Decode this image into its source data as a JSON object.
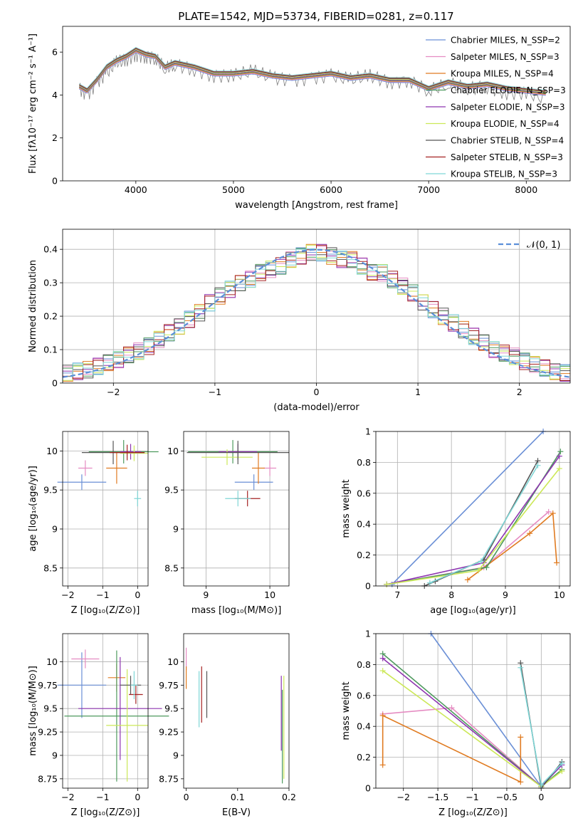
{
  "figure": {
    "title": "PLATE=1542, MJD=53734, FIBERID=0281, z=0.117"
  },
  "chart_data": [
    {
      "id": "spectrum",
      "type": "line",
      "xlabel": "wavelength [Angstrom, rest frame]",
      "ylabel": "Flux [fλ10⁻¹⁷ erg cm⁻² s⁻¹ A⁻¹]",
      "xlim": [
        3250,
        8450
      ],
      "ylim": [
        0,
        7.2
      ],
      "xticks": [
        4000,
        5000,
        6000,
        7000,
        8000
      ],
      "yticks": [
        0,
        2,
        4,
        6
      ],
      "grid": false,
      "legend_position": "top-right",
      "data_series": {
        "name": "",
        "color": "#808080",
        "x": [
          3420,
          3500,
          3600,
          3700,
          3800,
          3900,
          4000,
          4100,
          4200,
          4300,
          4400,
          4600,
          4800,
          5000,
          5200,
          5400,
          5600,
          5800,
          6000,
          6200,
          6400,
          6600,
          6800,
          7000,
          7200,
          7400,
          7600,
          7800,
          8000,
          8200
        ],
        "y": [
          4.3,
          4.0,
          4.6,
          5.0,
          5.5,
          5.6,
          5.9,
          5.8,
          5.7,
          5.2,
          5.4,
          5.2,
          4.9,
          4.9,
          5.1,
          4.8,
          4.7,
          4.8,
          4.9,
          4.7,
          4.9,
          4.6,
          4.7,
          4.2,
          4.5,
          4.3,
          4.4,
          4.1,
          4.1,
          3.8
        ]
      },
      "series": [
        {
          "name": "Chabrier MILES, N_SSP=2",
          "color": "#6a8fd6"
        },
        {
          "name": "Salpeter MILES, N_SSP=3",
          "color": "#e58cc2"
        },
        {
          "name": "Kroupa MILES, N_SSP=4",
          "color": "#e07b21"
        },
        {
          "name": "Chabrier ELODIE, N_SSP=3",
          "color": "#4e9a5e"
        },
        {
          "name": "Salpeter ELODIE, N_SSP=3",
          "color": "#8e35b0"
        },
        {
          "name": "Kroupa ELODIE, N_SSP=4",
          "color": "#cce858"
        },
        {
          "name": "Chabrier STELIB, N_SSP=4",
          "color": "#555555"
        },
        {
          "name": "Salpeter STELIB, N_SSP=3",
          "color": "#a52222"
        },
        {
          "name": "Kroupa STELIB, N_SSP=3",
          "color": "#7fd6d6"
        }
      ],
      "model_x": [
        3420,
        3500,
        3600,
        3700,
        3800,
        3900,
        4000,
        4100,
        4200,
        4300,
        4400,
        4600,
        4800,
        5000,
        5200,
        5400,
        5600,
        5800,
        6000,
        6200,
        6400,
        6600,
        6800,
        7000,
        7200,
        7400,
        7600,
        7800,
        8000,
        8200
      ],
      "model_y": [
        4.4,
        4.2,
        4.7,
        5.3,
        5.6,
        5.8,
        6.1,
        5.9,
        5.8,
        5.3,
        5.5,
        5.3,
        5.0,
        5.0,
        5.1,
        4.9,
        4.8,
        4.9,
        5.0,
        4.8,
        4.9,
        4.7,
        4.7,
        4.3,
        4.6,
        4.4,
        4.5,
        4.3,
        4.2,
        4.1
      ]
    },
    {
      "id": "residuals",
      "type": "histogram",
      "xlabel": "(data-model)/error",
      "ylabel": "Normed distribution",
      "xlim": [
        -2.5,
        2.5
      ],
      "ylim": [
        0,
        0.46
      ],
      "xticks": [
        -2,
        -1,
        0,
        1,
        2
      ],
      "yticks": [
        0.0,
        0.1,
        0.2,
        0.3,
        0.4
      ],
      "grid": true,
      "legend_position": "top-right",
      "reference_curve": {
        "name": "𝒩(0, 1)",
        "color": "#5b8fd9"
      },
      "bin_centers": [
        -2.45,
        -2.35,
        -2.25,
        -2.15,
        -2.05,
        -1.95,
        -1.85,
        -1.75,
        -1.65,
        -1.55,
        -1.45,
        -1.35,
        -1.25,
        -1.15,
        -1.05,
        -0.95,
        -0.85,
        -0.75,
        -0.65,
        -0.55,
        -0.45,
        -0.35,
        -0.25,
        -0.15,
        -0.05,
        0.05,
        0.15,
        0.25,
        0.35,
        0.45,
        0.55,
        0.65,
        0.75,
        0.85,
        0.95,
        1.05,
        1.15,
        1.25,
        1.35,
        1.45,
        1.55,
        1.65,
        1.75,
        1.85,
        1.95,
        2.05,
        2.15,
        2.25,
        2.35,
        2.45
      ],
      "hist_values": [
        0.03,
        0.035,
        0.04,
        0.05,
        0.06,
        0.07,
        0.085,
        0.095,
        0.11,
        0.13,
        0.15,
        0.17,
        0.19,
        0.21,
        0.24,
        0.26,
        0.28,
        0.3,
        0.31,
        0.33,
        0.34,
        0.35,
        0.37,
        0.38,
        0.39,
        0.39,
        0.38,
        0.37,
        0.37,
        0.35,
        0.33,
        0.33,
        0.31,
        0.29,
        0.27,
        0.24,
        0.22,
        0.2,
        0.18,
        0.16,
        0.14,
        0.12,
        0.1,
        0.09,
        0.08,
        0.065,
        0.055,
        0.045,
        0.035,
        0.03
      ]
    },
    {
      "id": "age_vs_Z",
      "type": "scatter",
      "xlabel": "Z [log₁₀(Z/Z⊙)]",
      "ylabel": "age  [log₁₀(age/yr)]",
      "xlim": [
        -2.15,
        0.3
      ],
      "ylim": [
        8.27,
        10.25
      ],
      "xticks": [
        -2,
        -1,
        0
      ],
      "yticks": [
        8.5,
        9.0,
        9.5,
        10.0
      ],
      "grid": true,
      "points": [
        {
          "color": "#6a8fd6",
          "x": -1.6,
          "y": 9.6,
          "xerr": 0.7,
          "yerr": 0.1
        },
        {
          "color": "#e58cc2",
          "x": -1.5,
          "y": 9.78,
          "xerr": 0.2,
          "yerr": 0.1
        },
        {
          "color": "#e07b21",
          "x": -0.6,
          "y": 9.78,
          "xerr": 0.3,
          "yerr": 0.2
        },
        {
          "color": "#4e9a5e",
          "x": -0.4,
          "y": 9.99,
          "xerr": 1.0,
          "yerr": 0.15
        },
        {
          "color": "#8e35b0",
          "x": -0.2,
          "y": 9.99,
          "xerr": 0.3,
          "yerr": 0.1
        },
        {
          "color": "#cce858",
          "x": -0.1,
          "y": 9.97,
          "xerr": 0.4,
          "yerr": 0.1
        },
        {
          "color": "#555555",
          "x": -0.7,
          "y": 9.98,
          "xerr": 0.9,
          "yerr": 0.15
        },
        {
          "color": "#a52222",
          "x": -0.3,
          "y": 9.98,
          "xerr": 0.5,
          "yerr": 0.1
        },
        {
          "color": "#7fd6d6",
          "x": 0.0,
          "y": 9.39,
          "xerr": 0.1,
          "yerr": 0.1
        }
      ]
    },
    {
      "id": "age_vs_mass",
      "type": "scatter",
      "xlabel": "mass [log₁₀(M/M⊙)]",
      "ylabel": "",
      "xlim": [
        8.65,
        10.3
      ],
      "ylim": [
        8.27,
        10.25
      ],
      "xticks": [
        9,
        10
      ],
      "yticks": [
        8.5,
        9.0,
        9.5,
        10.0
      ],
      "grid": true,
      "points": [
        {
          "color": "#6a8fd6",
          "x": 9.75,
          "y": 9.6,
          "xerr": 0.3,
          "yerr": 0.1
        },
        {
          "color": "#e58cc2",
          "x": 10.0,
          "y": 9.78,
          "xerr": 0.1,
          "yerr": 0.1
        },
        {
          "color": "#e07b21",
          "x": 9.82,
          "y": 9.78,
          "xerr": 0.1,
          "yerr": 0.2
        },
        {
          "color": "#4e9a5e",
          "x": 9.42,
          "y": 9.99,
          "xerr": 0.7,
          "yerr": 0.15
        },
        {
          "color": "#8e35b0",
          "x": 9.5,
          "y": 9.99,
          "xerr": 0.3,
          "yerr": 0.1
        },
        {
          "color": "#cce858",
          "x": 9.33,
          "y": 9.92,
          "xerr": 0.4,
          "yerr": 0.1
        },
        {
          "color": "#555555",
          "x": 9.5,
          "y": 9.98,
          "xerr": 0.8,
          "yerr": 0.15
        },
        {
          "color": "#a52222",
          "x": 9.65,
          "y": 9.39,
          "xerr": 0.2,
          "yerr": 0.1
        },
        {
          "color": "#7fd6d6",
          "x": 9.5,
          "y": 9.39,
          "xerr": 0.2,
          "yerr": 0.1
        }
      ]
    },
    {
      "id": "weight_vs_age",
      "type": "line",
      "xlabel": "age  [log₁₀(age/yr)]",
      "ylabel": "mass weight",
      "xlim": [
        6.6,
        10.2
      ],
      "ylim": [
        0,
        1.0
      ],
      "xticks": [
        7,
        8,
        9,
        10
      ],
      "yticks": [
        0.0,
        0.2,
        0.4,
        0.6,
        0.8,
        1.0
      ],
      "grid": true,
      "series": [
        {
          "color": "#6a8fd6",
          "x": [
            6.9,
            9.7
          ],
          "y": [
            0.01,
            1.0
          ]
        },
        {
          "color": "#e58cc2",
          "x": [
            6.8,
            8.6,
            9.8
          ],
          "y": [
            0.01,
            0.12,
            0.48
          ]
        },
        {
          "color": "#e07b21",
          "x": [
            8.3,
            9.45,
            9.88,
            9.95
          ],
          "y": [
            0.04,
            0.34,
            0.47,
            0.15
          ]
        },
        {
          "color": "#4e9a5e",
          "x": [
            6.8,
            8.65,
            10.02
          ],
          "y": [
            0.01,
            0.12,
            0.87
          ]
        },
        {
          "color": "#8e35b0",
          "x": [
            6.8,
            8.6,
            10.0
          ],
          "y": [
            0.01,
            0.15,
            0.84
          ]
        },
        {
          "color": "#cce858",
          "x": [
            6.8,
            8.5,
            10.0
          ],
          "y": [
            0.01,
            0.1,
            0.76
          ]
        },
        {
          "color": "#555555",
          "x": [
            7.5,
            7.7,
            8.6,
            9.6
          ],
          "y": [
            0.0,
            0.03,
            0.17,
            0.81
          ]
        },
        {
          "color": "#7fd6d6",
          "x": [
            7.6,
            8.55,
            9.6
          ],
          "y": [
            0.02,
            0.16,
            0.78
          ]
        }
      ]
    },
    {
      "id": "mass_vs_Z",
      "type": "scatter",
      "xlabel": "Z [log₁₀(Z/Z⊙)]",
      "ylabel": "mass [log₁₀(M/M⊙)]",
      "xlim": [
        -2.15,
        0.3
      ],
      "ylim": [
        8.65,
        10.3
      ],
      "xticks": [
        -2,
        -1,
        0
      ],
      "yticks": [
        8.75,
        9.0,
        9.25,
        9.5,
        9.75,
        10.0
      ],
      "grid": true,
      "points": [
        {
          "color": "#6a8fd6",
          "x": -1.6,
          "y": 9.75,
          "xerr": 0.7,
          "yerr": 0.35
        },
        {
          "color": "#e58cc2",
          "x": -1.5,
          "y": 10.03,
          "xerr": 0.4,
          "yerr": 0.1
        },
        {
          "color": "#e07b21",
          "x": -0.6,
          "y": 9.83,
          "xerr": 0.25,
          "yerr": 0.15
        },
        {
          "color": "#4e9a5e",
          "x": -0.6,
          "y": 9.42,
          "xerr": 1.5,
          "yerr": 0.7
        },
        {
          "color": "#8e35b0",
          "x": -0.5,
          "y": 9.5,
          "xerr": 1.2,
          "yerr": 0.55
        },
        {
          "color": "#cce858",
          "x": -0.3,
          "y": 9.32,
          "xerr": 0.6,
          "yerr": 0.6
        },
        {
          "color": "#555555",
          "x": -0.2,
          "y": 9.75,
          "xerr": 0.3,
          "yerr": 0.1
        },
        {
          "color": "#a52222",
          "x": -0.05,
          "y": 9.65,
          "xerr": 0.2,
          "yerr": 0.1
        },
        {
          "color": "#7fd6d6",
          "x": -0.1,
          "y": 9.75,
          "xerr": 0.1,
          "yerr": 0.15
        }
      ]
    },
    {
      "id": "mass_vs_EBV",
      "type": "scatter",
      "xlabel": "E(B-V)",
      "ylabel": "",
      "xlim": [
        -0.005,
        0.2
      ],
      "ylim": [
        8.65,
        10.3
      ],
      "xticks": [
        0.0,
        0.1,
        0.2
      ],
      "yticks": [
        8.75,
        9.0,
        9.25,
        9.5,
        9.75,
        10.0
      ],
      "grid": false,
      "points": [
        {
          "color": "#e58cc2",
          "x": 0.0,
          "y": 10.03,
          "xerr": 0,
          "yerr": 0.12
        },
        {
          "color": "#e07b21",
          "x": 0.0,
          "y": 9.83,
          "xerr": 0,
          "yerr": 0.12
        },
        {
          "color": "#7fd6d6",
          "x": 0.025,
          "y": 9.6,
          "xerr": 0,
          "yerr": 0.3
        },
        {
          "color": "#a52222",
          "x": 0.03,
          "y": 9.65,
          "xerr": 0,
          "yerr": 0.3
        },
        {
          "color": "#555555",
          "x": 0.04,
          "y": 9.65,
          "xerr": 0,
          "yerr": 0.25
        },
        {
          "color": "#8e35b0",
          "x": 0.185,
          "y": 9.45,
          "xerr": 0,
          "yerr": 0.4
        },
        {
          "color": "#4e9a5e",
          "x": 0.187,
          "y": 9.2,
          "xerr": 0,
          "yerr": 0.5
        },
        {
          "color": "#cce858",
          "x": 0.19,
          "y": 9.3,
          "xerr": 0,
          "yerr": 0.55
        }
      ]
    },
    {
      "id": "weight_vs_Z",
      "type": "line",
      "xlabel": "Z [log₁₀(Z/Z⊙)]",
      "ylabel": "mass weight",
      "xlim": [
        -2.4,
        0.42
      ],
      "ylim": [
        0,
        1.0
      ],
      "xticks": [
        -2.0,
        -1.5,
        -1.0,
        -0.5,
        0.0
      ],
      "yticks": [
        0.0,
        0.2,
        0.4,
        0.6,
        0.8,
        1.0
      ],
      "grid": true,
      "series": [
        {
          "color": "#6a8fd6",
          "x": [
            -1.6,
            0.0
          ],
          "y": [
            1.0,
            0.01
          ]
        },
        {
          "color": "#e58cc2",
          "x": [
            -2.3,
            -1.3,
            0.0
          ],
          "y": [
            0.48,
            0.52,
            0.01
          ]
        },
        {
          "color": "#e07b21",
          "x": [
            -2.3,
            -2.3,
            -0.3,
            -0.3
          ],
          "y": [
            0.15,
            0.47,
            0.04,
            0.33
          ]
        },
        {
          "color": "#4e9a5e",
          "x": [
            -2.3,
            0.0,
            0.3
          ],
          "y": [
            0.87,
            0.01,
            0.12
          ]
        },
        {
          "color": "#8e35b0",
          "x": [
            -2.3,
            0.0,
            0.3
          ],
          "y": [
            0.84,
            0.01,
            0.15
          ]
        },
        {
          "color": "#cce858",
          "x": [
            -2.3,
            0.0,
            0.3
          ],
          "y": [
            0.76,
            0.01,
            0.11
          ]
        },
        {
          "color": "#555555",
          "x": [
            -0.3,
            0.0,
            0.3
          ],
          "y": [
            0.81,
            0.0,
            0.17
          ]
        },
        {
          "color": "#7fd6d6",
          "x": [
            -0.3,
            0.0,
            0.3
          ],
          "y": [
            0.78,
            0.02,
            0.16
          ]
        }
      ]
    }
  ]
}
